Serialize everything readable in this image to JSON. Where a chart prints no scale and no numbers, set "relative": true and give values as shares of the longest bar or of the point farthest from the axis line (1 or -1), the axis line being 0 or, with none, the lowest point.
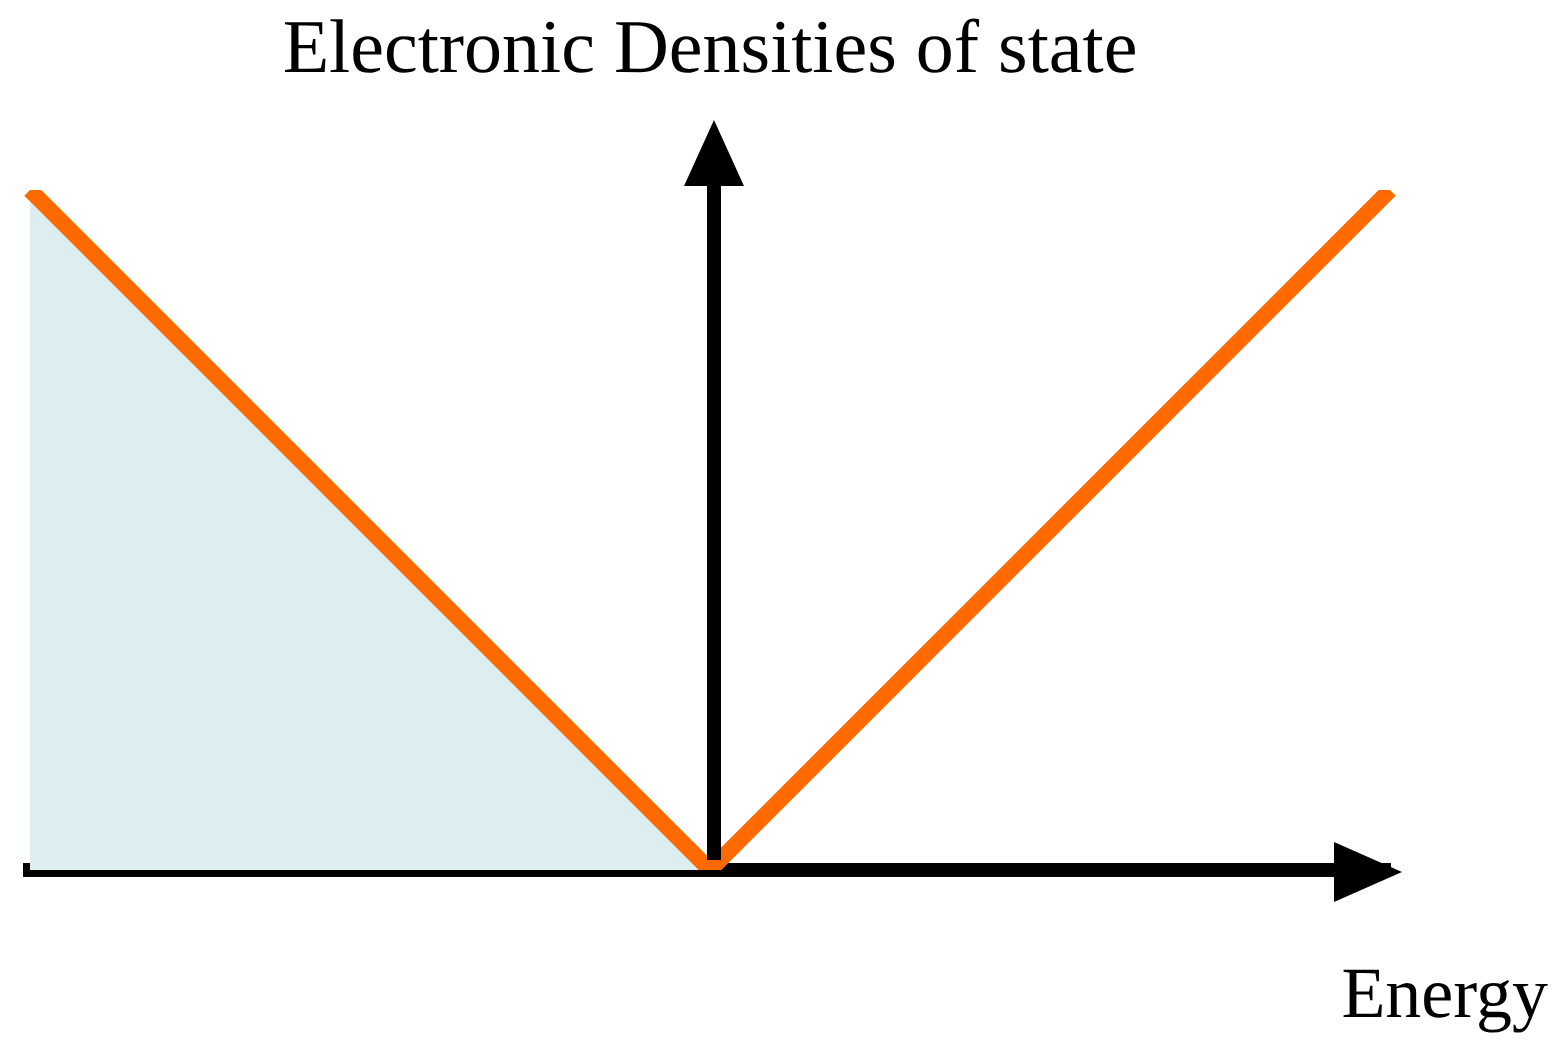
{
  "chart_data": {
    "type": "line",
    "title": "Electronic Densities of state",
    "xlabel": "Energy",
    "relative": true,
    "marker": "none",
    "categories": [
      null,
      null,
      null
    ],
    "series": [
      {
        "type": "area",
        "color": "#ddeef0",
        "values": [
          1,
          0,
          null
        ]
      },
      {
        "type": "line",
        "color": "#ff6a00",
        "values": [
          1,
          0,
          1
        ]
      }
    ]
  }
}
